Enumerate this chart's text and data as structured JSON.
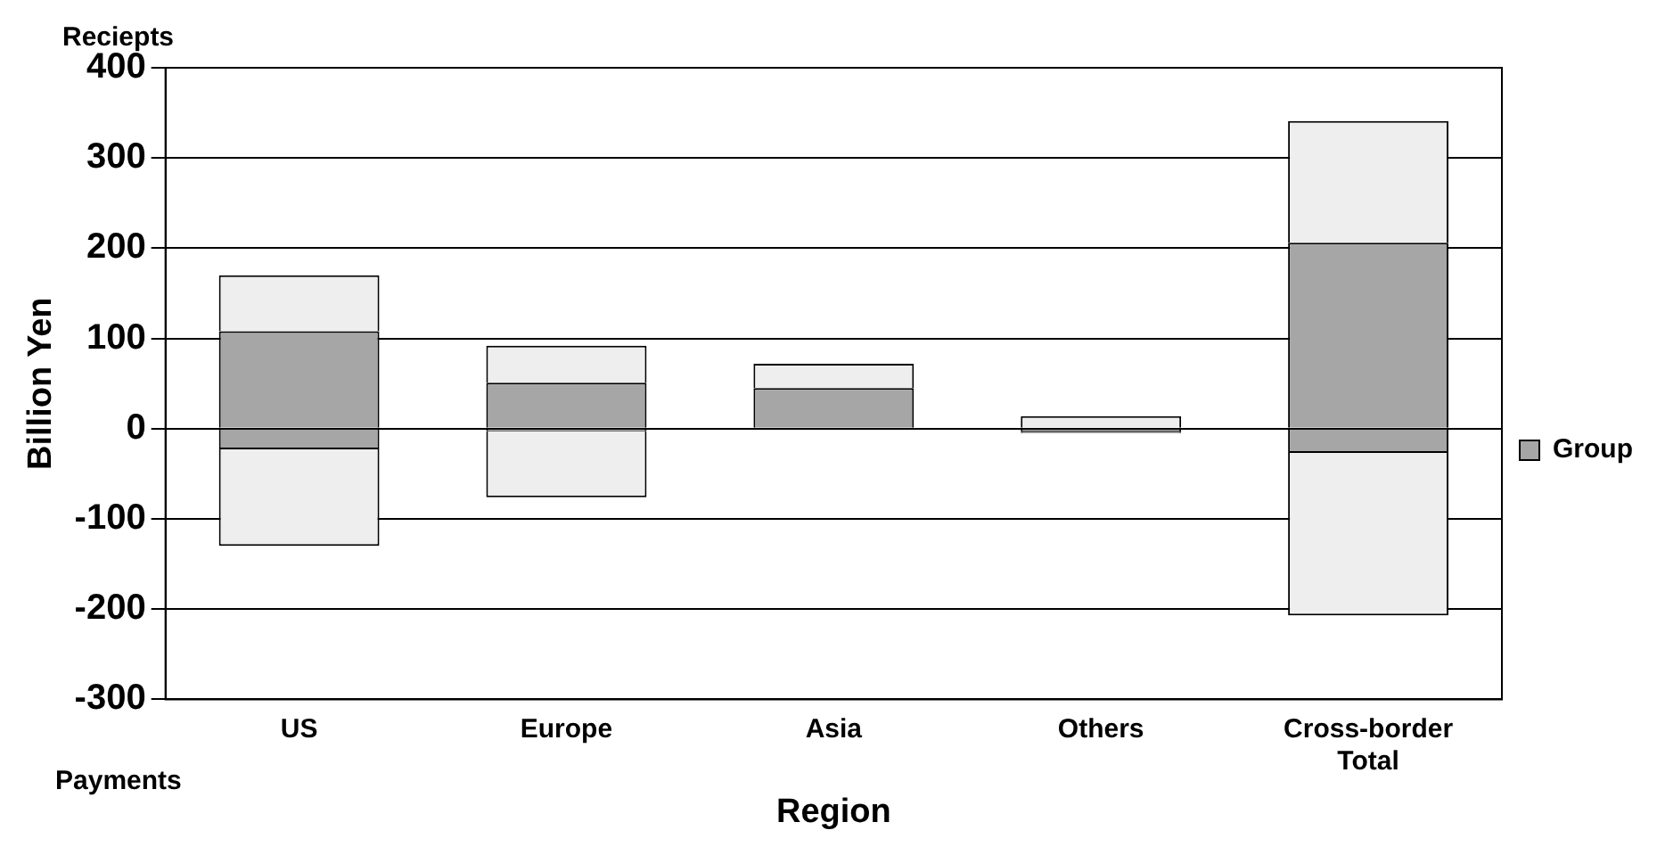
{
  "chart_data": {
    "type": "bar",
    "stacked": true,
    "xlabel": "Region",
    "ylabel": "Billion Yen",
    "annotations": [
      "Reciepts",
      "Payments"
    ],
    "categories": [
      "US",
      "Europe",
      "Asia",
      "Others",
      "Cross-border Total"
    ],
    "series": [
      {
        "name": "Group",
        "color": "#a6a6a6",
        "values": [
          108,
          51,
          45,
          null,
          206
        ]
      },
      {
        "color": "#eeeeee",
        "values": [
          62,
          41,
          27,
          14,
          135
        ]
      },
      {
        "color": "#a6a6a6",
        "values": [
          -23,
          -3,
          null,
          -4,
          -27
        ]
      },
      {
        "color": "#eeeeee",
        "values": [
          -107,
          -73,
          null,
          -1,
          -180
        ]
      }
    ],
    "ylim": [
      -300,
      400
    ],
    "yticks": [
      {
        "value": -300,
        "label": "-300"
      },
      {
        "value": -200,
        "label": "-200"
      },
      {
        "value": -100,
        "label": "-100"
      },
      0,
      100,
      200,
      300,
      400
    ],
    "grid": "y",
    "legend": "right"
  }
}
